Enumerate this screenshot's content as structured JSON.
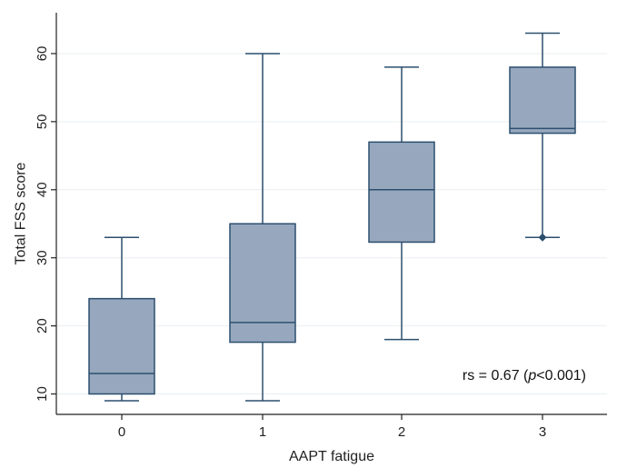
{
  "chart_data": {
    "type": "boxplot",
    "xlabel": "AAPT fatigue",
    "ylabel": "Total FSS score",
    "categories": [
      "0",
      "1",
      "2",
      "3"
    ],
    "ylim": [
      7,
      66
    ],
    "yticks": [
      "10",
      "20",
      "30",
      "40",
      "50",
      "60"
    ],
    "boxes": [
      {
        "category": "0",
        "whisker_low": 9,
        "q1": 10,
        "median": 13,
        "q3": 24,
        "whisker_high": 33,
        "outliers": []
      },
      {
        "category": "1",
        "whisker_low": 9,
        "q1": 17.6,
        "median": 20.5,
        "q3": 35,
        "whisker_high": 60,
        "outliers": []
      },
      {
        "category": "2",
        "whisker_low": 18,
        "q1": 32.3,
        "median": 40,
        "q3": 47,
        "whisker_high": 58,
        "outliers": []
      },
      {
        "category": "3",
        "whisker_low": 33,
        "q1": 48.3,
        "median": 49,
        "q3": 58,
        "whisker_high": 63,
        "outliers": [
          33
        ]
      }
    ],
    "grid": "horizontal",
    "annotation": {
      "prefix": "rs = 0.67 (",
      "italic": "p",
      "suffix": "<0.001)"
    },
    "colors": {
      "box_fill": "#97a8be",
      "box_stroke": "#2c4f6e",
      "axis": "#222222",
      "grid": "#e9eef2"
    }
  }
}
